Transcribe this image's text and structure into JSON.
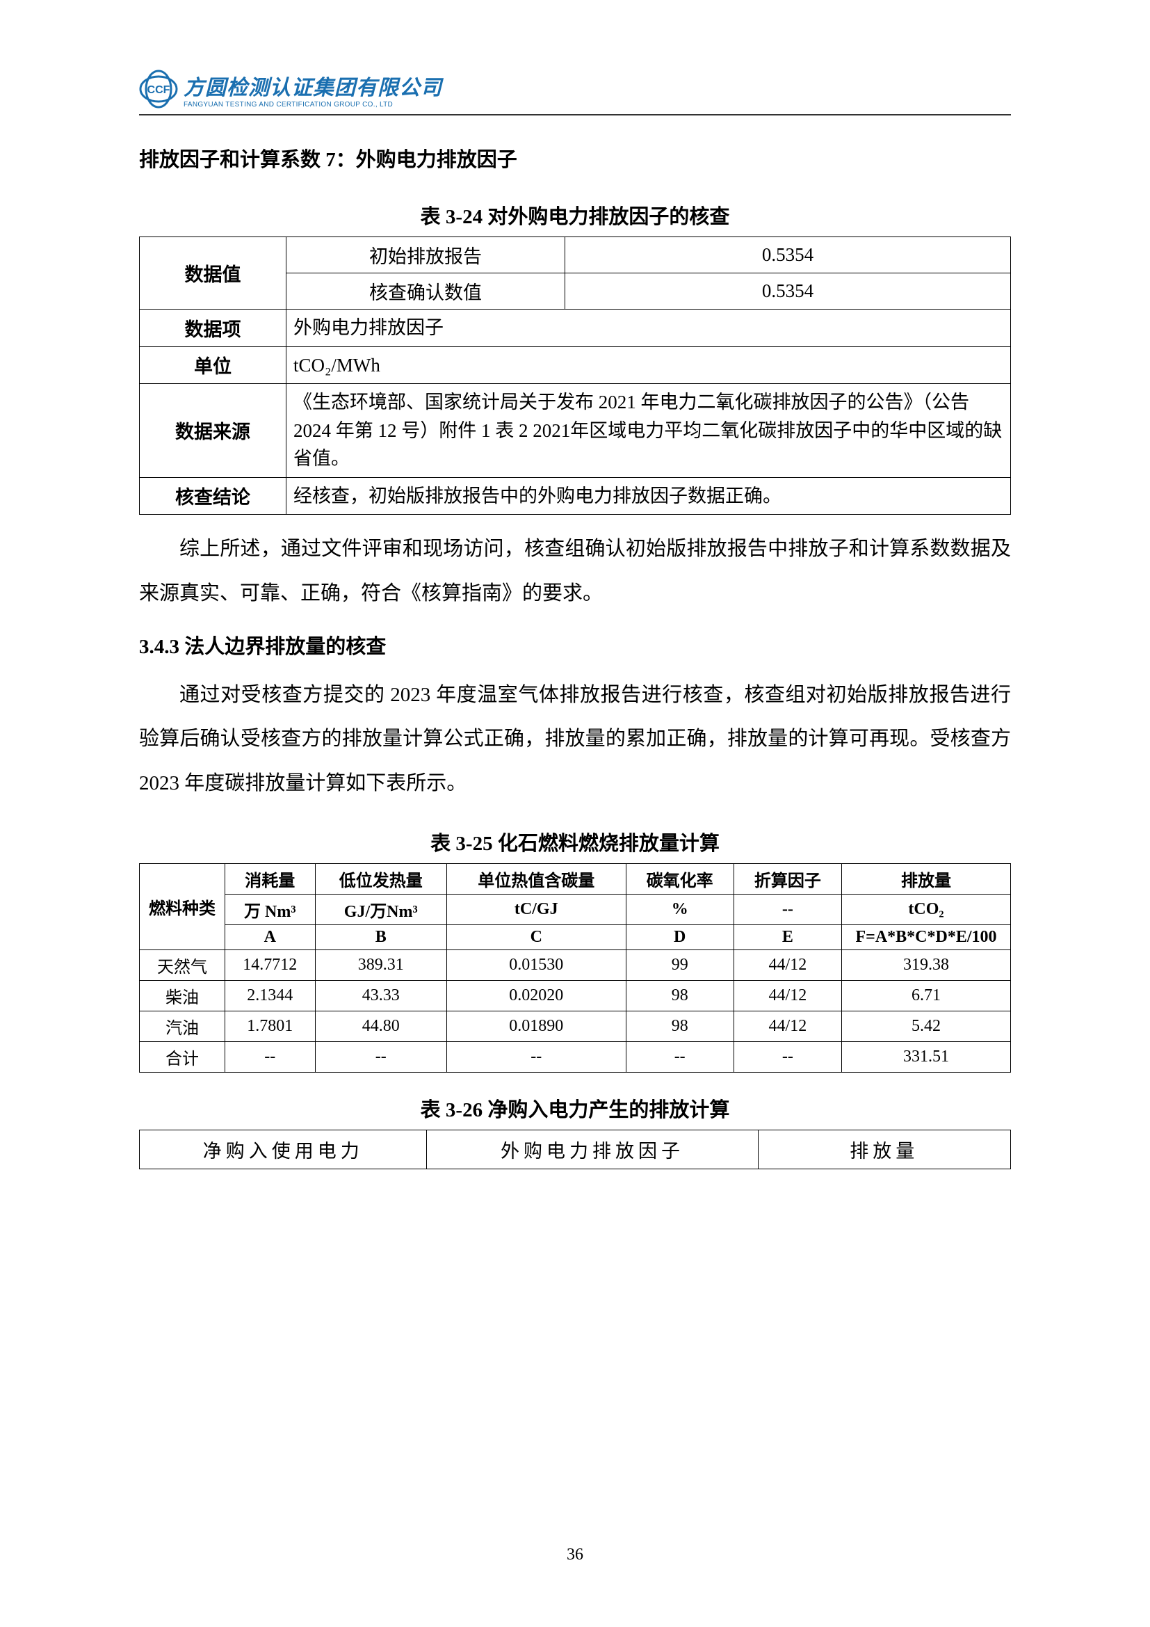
{
  "logo": {
    "cn": "方圆检测认证集团有限公司",
    "en": "FANGYUAN TESTING AND CERTIFICATION GROUP CO., LTD"
  },
  "heading7": "排放因子和计算系数 7：外购电力排放因子",
  "table324": {
    "caption": "表 3-24  对外购电力排放因子的核查",
    "r1_label": "数据值",
    "r1a_mid": "初始排放报告",
    "r1a_val": "0.5354",
    "r1b_mid": "核查确认数值",
    "r1b_val": "0.5354",
    "r2_label": "数据项",
    "r2_body": "外购电力排放因子",
    "r3_label": "单位",
    "r3_body": "tCO₂/MWh",
    "r4_label": "数据来源",
    "r4_body": "《生态环境部、国家统计局关于发布 2021 年电力二氧化碳排放因子的公告》（公告 2024 年第 12 号）附件 1 表 2 2021年区域电力平均二氧化碳排放因子中的华中区域的缺省值。",
    "r5_label": "核查结论",
    "r5_body": "经核查，初始版排放报告中的外购电力排放因子数据正确。"
  },
  "para1": "综上所述，通过文件评审和现场访问，核查组确认初始版排放报告中排放子和计算系数数据及来源真实、可靠、正确，符合《核算指南》的要求。",
  "subheading343": "3.4.3 法人边界排放量的核查",
  "para2": "通过对受核查方提交的 2023 年度温室气体排放报告进行核查，核查组对初始版排放报告进行验算后确认受核查方的排放量计算公式正确，排放量的累加正确，排放量的计算可再现。受核查方 2023 年度碳排放量计算如下表所示。",
  "table325": {
    "caption": "表 3-25  化石燃料燃烧排放量计算",
    "hdr_fuel": "燃料种类",
    "hdr_cons": "消耗量",
    "hdr_ncv": "低位发热量",
    "hdr_carbon": "单位热值含碳量",
    "hdr_ox": "碳氧化率",
    "hdr_conv": "折算因子",
    "hdr_emit": "排放量",
    "u_cons": "万 Nm³",
    "u_ncv": "GJ/万Nm³",
    "u_carbon": "tC/GJ",
    "u_ox": "%",
    "u_conv": "--",
    "u_emit": "tCO₂",
    "sym_a": "A",
    "sym_b": "B",
    "sym_c": "C",
    "sym_d": "D",
    "sym_e": "E",
    "sym_f": "F=A*B*C*D*E/100",
    "rows": [
      {
        "fuel": "天然气",
        "a": "14.7712",
        "b": "389.31",
        "c": "0.01530",
        "d": "99",
        "e": "44/12",
        "f": "319.38"
      },
      {
        "fuel": "柴油",
        "a": "2.1344",
        "b": "43.33",
        "c": "0.02020",
        "d": "98",
        "e": "44/12",
        "f": "6.71"
      },
      {
        "fuel": "汽油",
        "a": "1.7801",
        "b": "44.80",
        "c": "0.01890",
        "d": "98",
        "e": "44/12",
        "f": "5.42"
      },
      {
        "fuel": "合计",
        "a": "--",
        "b": "--",
        "c": "--",
        "d": "--",
        "e": "--",
        "f": "331.51"
      }
    ]
  },
  "table326": {
    "caption": "表 3-26  净购入电力产生的排放计算",
    "c1": "净购入使用电力",
    "c2": "外购电力排放因子",
    "c3": "排放量"
  },
  "page_num": "36"
}
